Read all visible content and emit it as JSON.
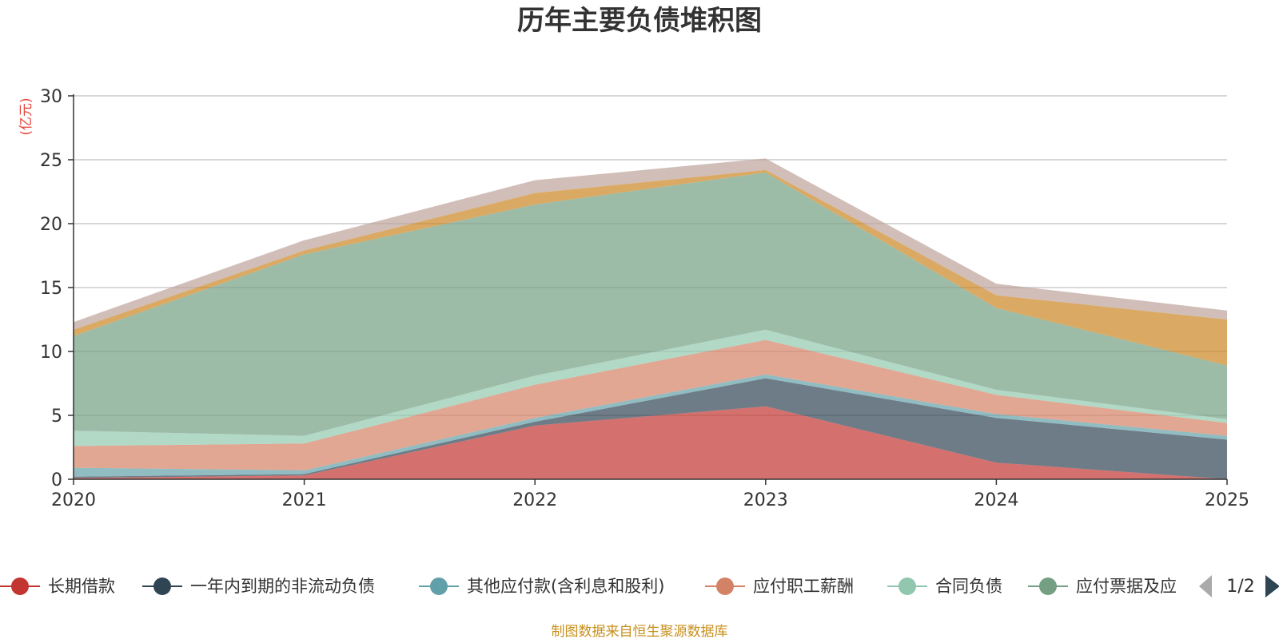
{
  "chart_data": {
    "type": "area",
    "stacked": true,
    "title": "历年主要负债堆积图",
    "yunit": "(亿元)",
    "categories": [
      "2020",
      "2021",
      "2022",
      "2023",
      "2024",
      "2025"
    ],
    "ylim": [
      0,
      30
    ],
    "yticks": [
      "0",
      "5",
      "10",
      "15",
      "20",
      "25",
      "30"
    ],
    "grid": true,
    "series": [
      {
        "name": "长期借款",
        "color": "#c23531",
        "values": [
          0.1,
          0.3,
          4.2,
          5.7,
          1.3,
          0.0
        ]
      },
      {
        "name": "一年内到期的非流动负债",
        "color": "#2f4554",
        "values": [
          0.1,
          0.1,
          0.3,
          2.2,
          3.5,
          3.1
        ]
      },
      {
        "name": "其他应付款(含利息和股利)",
        "color": "#61a0a8",
        "values": [
          0.7,
          0.3,
          0.3,
          0.3,
          0.3,
          0.3
        ]
      },
      {
        "name": "应付职工薪酬",
        "color": "#d48265",
        "values": [
          1.7,
          2.1,
          2.6,
          2.7,
          1.5,
          1.0
        ]
      },
      {
        "name": "合同负债",
        "color": "#91c7ae",
        "values": [
          1.2,
          0.6,
          0.7,
          0.8,
          0.4,
          0.3
        ]
      },
      {
        "name": "应付票据及应付账款",
        "color": "#749f83",
        "values": [
          7.4,
          14.2,
          13.4,
          12.3,
          6.4,
          4.2
        ]
      },
      {
        "name": "",
        "color": "#ca8622",
        "values": [
          0.5,
          0.3,
          0.9,
          0.2,
          1.0,
          3.6
        ]
      },
      {
        "name": "",
        "color": "#bda29a",
        "values": [
          0.6,
          0.8,
          1.0,
          0.9,
          0.9,
          0.7
        ]
      }
    ]
  },
  "legend": {
    "items": [
      {
        "label": "长期借款",
        "color": "#c23531"
      },
      {
        "label": "一年内到期的非流动负债",
        "color": "#2f4554"
      },
      {
        "label": "其他应付款(含利息和股利)",
        "color": "#61a0a8"
      },
      {
        "label": "应付职工薪酬",
        "color": "#d48265"
      },
      {
        "label": "合同负债",
        "color": "#91c7ae"
      },
      {
        "label": "应付票据及应",
        "color": "#749f83"
      }
    ],
    "page": "1/2"
  },
  "source": "制图数据来自恒生聚源数据库",
  "colors": {
    "unit": "#e8453c",
    "source": "#c8901c",
    "axis": "#333333",
    "grid": "#cccccc",
    "arrow_inactive": "#aaaaaa",
    "arrow_active": "#2f4554"
  }
}
